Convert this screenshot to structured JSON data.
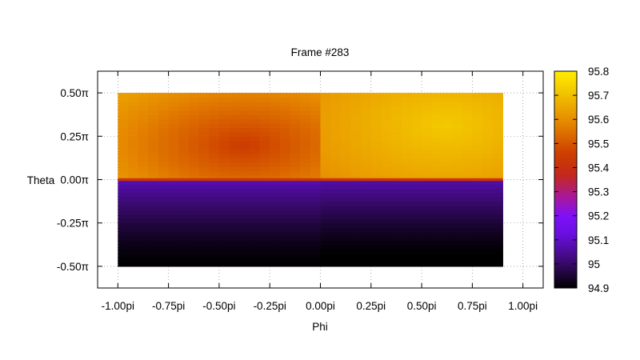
{
  "chart_data": {
    "type": "heatmap",
    "title": "Frame #283",
    "xlabel": "Phi",
    "ylabel": "Theta",
    "xlim": [
      -1.1,
      1.1
    ],
    "ylim": [
      -0.625,
      0.625
    ],
    "data_extent": {
      "x": [
        -1.0,
        0.9
      ],
      "y": [
        -0.5,
        0.5
      ]
    },
    "x_ticks": [
      {
        "value": -1.0,
        "label": "-1.00pi"
      },
      {
        "value": -0.75,
        "label": "-0.75pi"
      },
      {
        "value": -0.5,
        "label": "-0.50pi"
      },
      {
        "value": -0.25,
        "label": "-0.25pi"
      },
      {
        "value": 0.0,
        "label": "0.00pi"
      },
      {
        "value": 0.25,
        "label": "0.25pi"
      },
      {
        "value": 0.5,
        "label": "0.50pi"
      },
      {
        "value": 0.75,
        "label": "0.75pi"
      },
      {
        "value": 1.0,
        "label": "1.00pi"
      }
    ],
    "y_ticks": [
      {
        "value": 0.5,
        "label": "0.50π"
      },
      {
        "value": 0.25,
        "label": "0.25π"
      },
      {
        "value": 0.0,
        "label": "0.00π"
      },
      {
        "value": -0.25,
        "label": "-0.25π"
      },
      {
        "value": -0.5,
        "label": "-0.50π"
      }
    ],
    "colorbar": {
      "range": [
        94.9,
        95.8
      ],
      "ticks": [
        {
          "value": 95.8,
          "label": "95.8"
        },
        {
          "value": 95.7,
          "label": "95.7"
        },
        {
          "value": 95.6,
          "label": "95.6"
        },
        {
          "value": 95.5,
          "label": "95.5"
        },
        {
          "value": 95.4,
          "label": "95.4"
        },
        {
          "value": 95.3,
          "label": "95.3"
        },
        {
          "value": 95.2,
          "label": "95.2"
        },
        {
          "value": 95.1,
          "label": "95.1"
        },
        {
          "value": 95,
          "label": "95"
        },
        {
          "value": 94.9,
          "label": "94.9"
        }
      ],
      "palette": "black-purple-red-orange-yellow"
    },
    "grid": true,
    "legend": "colorbar-right",
    "field": {
      "upper_left_range": [
        95.45,
        95.63
      ],
      "upper_right_range": [
        95.6,
        95.72
      ],
      "lower_range": [
        94.9,
        95.08
      ],
      "equator_value": 95.42
    }
  }
}
